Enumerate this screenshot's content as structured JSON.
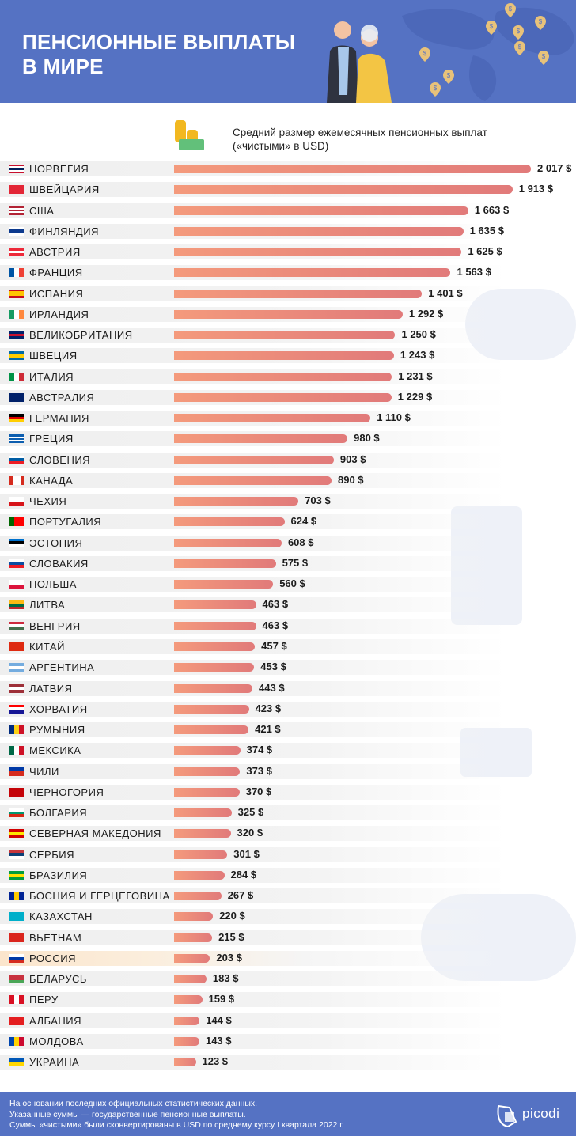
{
  "header": {
    "title_line1": "ПЕНСИОННЫЕ ВЫПЛАТЫ",
    "title_line2": "В МИРЕ"
  },
  "chart_data": {
    "type": "bar",
    "orientation": "horizontal",
    "title": "Средний размер ежемесячных пенсионных выплат («чистыми» в USD)",
    "title_line1": "Средний размер ежемесячных пенсионных выплат",
    "title_line2": "(«чистыми» в USD)",
    "unit": "$",
    "bar_colors": [
      "#f49a7c",
      "#e17a7a"
    ],
    "highlight_category": "РОССИЯ",
    "highlight_color": "#fbe5cc",
    "categories": [
      "НОРВЕГИЯ",
      "ШВЕЙЦАРИЯ",
      "США",
      "ФИНЛЯНДИЯ",
      "АВСТРИЯ",
      "ФРАНЦИЯ",
      "ИСПАНИЯ",
      "ИРЛАНДИЯ",
      "ВЕЛИКОБРИТАНИЯ",
      "ШВЕЦИЯ",
      "ИТАЛИЯ",
      "АВСТРАЛИЯ",
      "ГЕРМАНИЯ",
      "ГРЕЦИЯ",
      "СЛОВЕНИЯ",
      "КАНАДА",
      "ЧЕХИЯ",
      "ПОРТУГАЛИЯ",
      "ЭСТОНИЯ",
      "СЛОВАКИЯ",
      "ПОЛЬША",
      "ЛИТВА",
      "ВЕНГРИЯ",
      "КИТАЙ",
      "АРГЕНТИНА",
      "ЛАТВИЯ",
      "ХОРВАТИЯ",
      "РУМЫНИЯ",
      "МЕКСИКА",
      "ЧИЛИ",
      "ЧЕРНОГОРИЯ",
      "БОЛГАРИЯ",
      "СЕВЕРНАЯ МАКЕДОНИЯ",
      "СЕРБИЯ",
      "БРАЗИЛИЯ",
      "БОСНИЯ И ГЕРЦЕГОВИНА",
      "КАЗАХСТАН",
      "ВЬЕТНАМ",
      "РОССИЯ",
      "БЕЛАРУСЬ",
      "ПЕРУ",
      "АЛБАНИЯ",
      "МОЛДОВА",
      "УКРАИНА"
    ],
    "values": [
      2017,
      1913,
      1663,
      1635,
      1625,
      1563,
      1401,
      1292,
      1250,
      1243,
      1231,
      1229,
      1110,
      980,
      903,
      890,
      703,
      624,
      608,
      575,
      560,
      463,
      463,
      457,
      453,
      443,
      423,
      421,
      374,
      373,
      370,
      325,
      320,
      301,
      284,
      267,
      220,
      215,
      203,
      183,
      159,
      144,
      143,
      123
    ],
    "labels": [
      "2 017 $",
      "1 913 $",
      "1 663 $",
      "1 635 $",
      "1 625 $",
      "1 563 $",
      "1 401 $",
      "1 292 $",
      "1 250 $",
      "1 243 $",
      "1 231 $",
      "1 229 $",
      "1 110 $",
      "980 $",
      "903 $",
      "890 $",
      "703 $",
      "624 $",
      "608 $",
      "575 $",
      "560 $",
      "463 $",
      "463 $",
      "457 $",
      "453 $",
      "443 $",
      "423 $",
      "421 $",
      "374 $",
      "373 $",
      "370 $",
      "325 $",
      "320 $",
      "301 $",
      "284 $",
      "267 $",
      "220 $",
      "215 $",
      "203 $",
      "183 $",
      "159 $",
      "144 $",
      "143 $",
      "123 $"
    ],
    "xlim": [
      0,
      2017
    ],
    "grid": false,
    "legend": "none"
  },
  "footer": {
    "note_line1": "На основании последних официальных статистических данных.",
    "note_line2": "Указанные суммы — государственные пенсионные выплаты.",
    "note_line3": "Суммы «чистыми» были сконвертированы в USD по среднему курсу I квартала 2022 г.",
    "logo": "picodi"
  },
  "colors": {
    "header_bg": "#5572c3",
    "footer_bg": "#5572c3",
    "pin": "#e8c27a"
  }
}
